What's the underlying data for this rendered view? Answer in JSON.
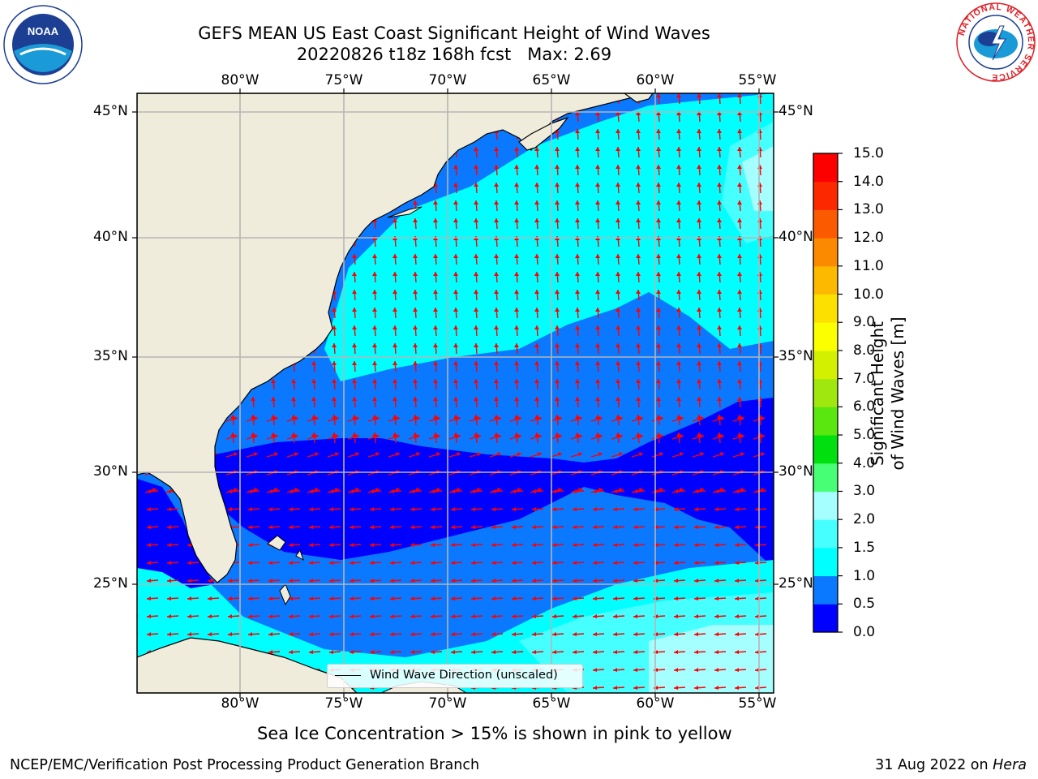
{
  "title": {
    "line1": "GEFS MEAN US East Coast Significant Height of Wind Waves",
    "line2": "20220826 t18z 168h fcst   Max: 2.69"
  },
  "logos": {
    "left": {
      "name": "noaa-logo",
      "text": "NOAA"
    },
    "right": {
      "name": "nws-logo",
      "text": "NATIONAL WEATHER SERVICE"
    }
  },
  "map": {
    "lon_labels": [
      "80°W",
      "75°W",
      "70°W",
      "65°W",
      "60°W",
      "55°W"
    ],
    "lat_labels": [
      "45°N",
      "40°N",
      "35°N",
      "30°N",
      "25°N"
    ],
    "colors": {
      "land": "#efecdc",
      "grid": "#b5b5b5",
      "arrow": "#ff0000"
    }
  },
  "legend": {
    "label": "Wind Wave Direction (unscaled)"
  },
  "colorbar": {
    "label": "Significant Height of Wind Waves [m]",
    "ticks": [
      "0.0",
      "0.5",
      "1.0",
      "1.5",
      "2.0",
      "3.0",
      "4.0",
      "5.0",
      "6.0",
      "7.0",
      "8.0",
      "9.0",
      "10.0",
      "11.0",
      "12.0",
      "13.0",
      "14.0",
      "15.0"
    ],
    "colors": [
      "#0000ff",
      "#0a78ff",
      "#00ffff",
      "#46ffff",
      "#a5ffff",
      "#46ff75",
      "#00e00f",
      "#5ae60f",
      "#a0e60f",
      "#d2f000",
      "#fcff00",
      "#fce100",
      "#fcb900",
      "#fc8a00",
      "#fc5a00",
      "#fc2800",
      "#fc0000"
    ]
  },
  "note": "Sea Ice Concentration > 15% is shown in pink to yellow",
  "footer": {
    "left": "NCEP/EMC/Verification Post Processing Product Generation Branch",
    "date": "31 Aug 2022 on ",
    "machine": "Hera"
  }
}
